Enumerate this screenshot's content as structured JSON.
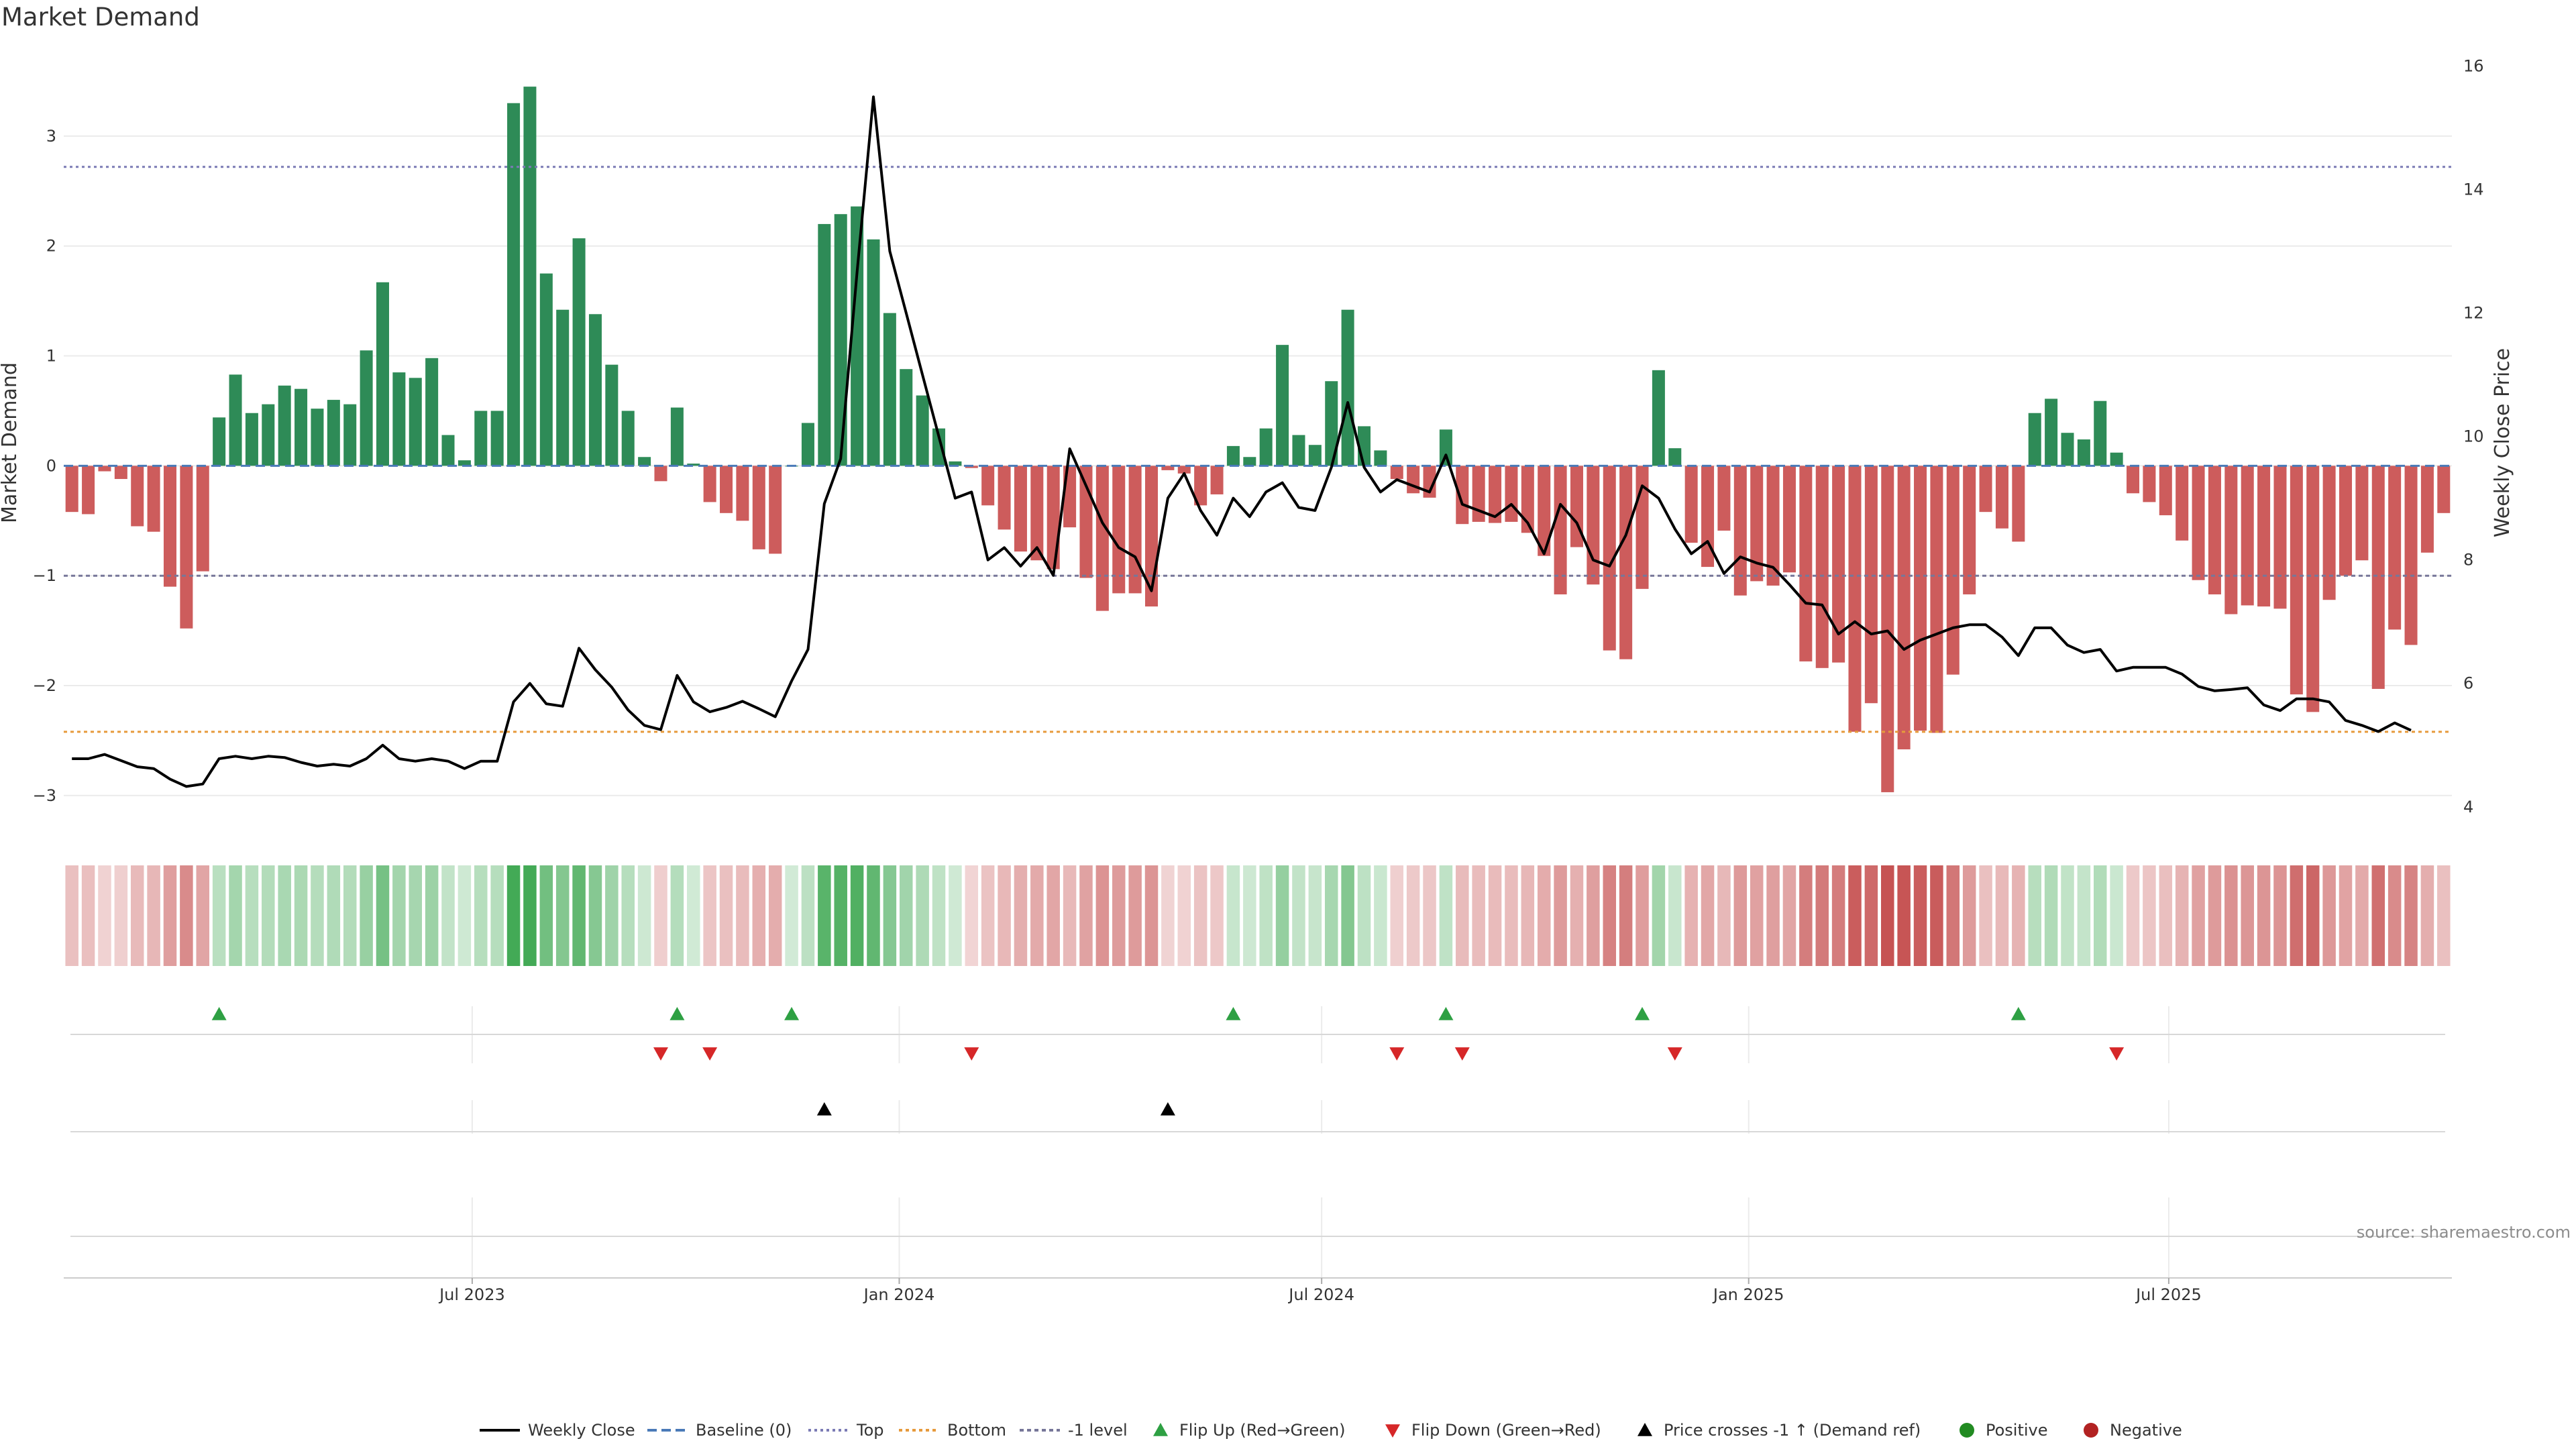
{
  "chart_data": {
    "type": "bar",
    "title": "Market Demand",
    "ylabel": "Market Demand",
    "y2label": "Weekly Close Price",
    "ylim": [
      -3.3,
      3.75
    ],
    "y2lim": [
      3.65,
      16.2
    ],
    "yticks": [
      {
        "v": 3,
        "t": "3"
      },
      {
        "v": 2,
        "t": "2"
      },
      {
        "v": 1,
        "t": "1"
      },
      {
        "v": 0,
        "t": "0"
      },
      {
        "v": -1,
        "t": "−1"
      },
      {
        "v": -2,
        "t": "−2"
      },
      {
        "v": -3,
        "t": "−3"
      }
    ],
    "y2ticks": [
      {
        "v": 16,
        "t": "16"
      },
      {
        "v": 14,
        "t": "14"
      },
      {
        "v": 12,
        "t": "12"
      },
      {
        "v": 10,
        "t": "10"
      },
      {
        "v": 8,
        "t": "8"
      },
      {
        "v": 6,
        "t": "6"
      },
      {
        "v": 4,
        "t": "4"
      }
    ],
    "x_start": "2023-01-06",
    "x_end": "2025-10-31",
    "xticks": [
      {
        "date": "2023-07-01",
        "label": "Jul 2023"
      },
      {
        "date": "2024-01-01",
        "label": "Jan 2024"
      },
      {
        "date": "2024-07-01",
        "label": "Jul 2024"
      },
      {
        "date": "2025-01-01",
        "label": "Jan 2025"
      },
      {
        "date": "2025-07-01",
        "label": "Jul 2025"
      }
    ],
    "reference_lines": {
      "top": 2.72,
      "bottom": -2.42,
      "minus_one": -1,
      "baseline": 0
    },
    "demand": [
      -0.42,
      -0.44,
      -0.05,
      -0.12,
      -0.55,
      -0.6,
      -1.1,
      -1.48,
      -0.96,
      0.44,
      0.83,
      0.48,
      0.56,
      0.73,
      0.7,
      0.52,
      0.6,
      0.56,
      1.05,
      1.67,
      0.85,
      0.8,
      0.98,
      0.28,
      0.05,
      0.5,
      0.5,
      3.3,
      3.45,
      1.75,
      1.42,
      2.07,
      1.38,
      0.92,
      0.5,
      0.08,
      -0.14,
      0.53,
      0.02,
      -0.33,
      -0.43,
      -0.5,
      -0.76,
      -0.8,
      0.0,
      0.39,
      2.2,
      2.29,
      2.36,
      2.06,
      1.39,
      0.88,
      0.64,
      0.34,
      0.04,
      -0.02,
      -0.36,
      -0.58,
      -0.78,
      -0.86,
      -0.94,
      -0.56,
      -1.02,
      -1.32,
      -1.16,
      -1.16,
      -1.28,
      -0.04,
      -0.07,
      -0.36,
      -0.26,
      0.18,
      0.08,
      0.34,
      1.1,
      0.28,
      0.19,
      0.77,
      1.42,
      0.36,
      0.14,
      -0.12,
      -0.25,
      -0.29,
      0.33,
      -0.53,
      -0.51,
      -0.52,
      -0.51,
      -0.61,
      -0.82,
      -1.17,
      -0.74,
      -1.08,
      -1.68,
      -1.76,
      -1.12,
      0.87,
      0.16,
      -0.7,
      -0.92,
      -0.59,
      -1.18,
      -1.05,
      -1.09,
      -0.97,
      -1.78,
      -1.84,
      -1.79,
      -2.42,
      -2.16,
      -2.97,
      -2.58,
      -2.41,
      -2.43,
      -1.9,
      -1.17,
      -0.42,
      -0.57,
      -0.69,
      0.48,
      0.61,
      0.3,
      0.24,
      0.59,
      0.12,
      -0.25,
      -0.33,
      -0.45,
      -0.68,
      -1.04,
      -1.17,
      -1.35,
      -1.27,
      -1.28,
      -1.3,
      -2.08,
      -2.24,
      -1.22,
      -1.0,
      -0.86,
      -2.03,
      -1.49,
      -1.63,
      -0.79,
      -0.43
    ],
    "close": [
      4.78,
      4.78,
      4.85,
      4.75,
      4.65,
      4.62,
      4.45,
      4.33,
      4.37,
      4.78,
      4.82,
      4.78,
      4.82,
      4.8,
      4.72,
      4.66,
      4.69,
      4.66,
      4.78,
      5.0,
      4.78,
      4.74,
      4.78,
      4.74,
      4.62,
      4.74,
      4.74,
      5.7,
      6.0,
      5.67,
      5.63,
      6.57,
      6.22,
      5.94,
      5.57,
      5.32,
      5.25,
      6.13,
      5.7,
      5.54,
      5.61,
      5.71,
      5.59,
      5.46,
      6.04,
      6.55,
      8.91,
      9.64,
      12.66,
      15.5,
      13.0,
      12.0,
      11.0,
      10.0,
      9.0,
      9.1,
      8.0,
      8.2,
      7.9,
      8.2,
      7.75,
      9.8,
      9.2,
      8.6,
      8.2,
      8.05,
      7.5,
      9.0,
      9.4,
      8.8,
      8.4,
      9.0,
      8.7,
      9.1,
      9.25,
      8.85,
      8.8,
      9.5,
      10.55,
      9.5,
      9.1,
      9.3,
      9.2,
      9.1,
      9.7,
      8.9,
      8.8,
      8.7,
      8.9,
      8.6,
      8.1,
      8.9,
      8.6,
      8.0,
      7.9,
      8.4,
      9.2,
      9.0,
      8.5,
      8.1,
      8.3,
      7.78,
      8.05,
      7.95,
      7.88,
      7.6,
      7.3,
      7.27,
      6.8,
      7.0,
      6.8,
      6.85,
      6.55,
      6.7,
      6.8,
      6.9,
      6.95,
      6.95,
      6.75,
      6.45,
      6.9,
      6.9,
      6.62,
      6.5,
      6.55,
      6.2,
      6.26,
      6.26,
      6.26,
      6.15,
      5.95,
      5.88,
      5.9,
      5.93,
      5.65,
      5.56,
      5.75,
      5.75,
      5.7,
      5.4,
      5.32,
      5.22,
      5.36,
      5.24
    ],
    "flip_up_weeks": [
      9,
      37,
      44,
      71,
      84,
      96,
      119
    ],
    "flip_down_weeks": [
      36,
      39,
      55,
      81,
      85,
      98,
      125
    ],
    "price_cross_weeks": [
      46,
      67
    ],
    "series_names": {
      "close": "Weekly Close",
      "baseline": "Baseline (0)",
      "top": "Top",
      "bottom": "Bottom",
      "minus_one": "-1 level",
      "flip_up": "Flip Up (Red→Green)",
      "flip_down": "Flip Down (Green→Red)",
      "cross": "Price crosses -1 ↑ (Demand ref)",
      "positive": "Positive",
      "negative": "Negative"
    },
    "source": "source: sharemaestro.com"
  },
  "colors": {
    "positive": "#2e8b57",
    "negative": "#cd5c5c",
    "close": "#000000",
    "top": "#7b7bb5",
    "bottom": "#e69a3c",
    "minus_one": "#777799",
    "baseline": "#4a7ab8",
    "flip_up": "#2ea043",
    "flip_down": "#d62728",
    "cross": "#000000",
    "positive_dot": "#228b22",
    "negative_dot": "#b22222"
  }
}
